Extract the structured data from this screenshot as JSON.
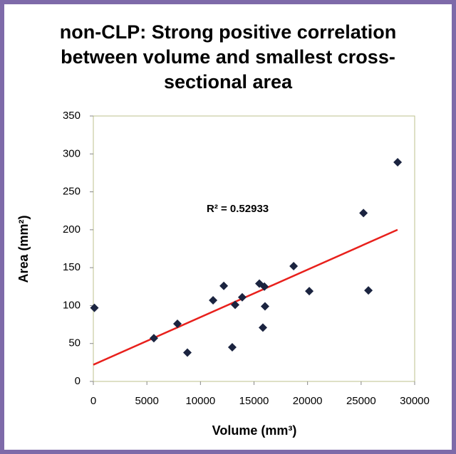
{
  "chart_data": {
    "type": "scatter",
    "title": "non-CLP: Strong positive correlation between volume and smallest cross-sectional area",
    "x_label": "Volume (mm³)",
    "y_label": "Area (mm²)",
    "x": [
      100,
      5650,
      7850,
      8780,
      11180,
      12180,
      12970,
      13240,
      13900,
      15500,
      15830,
      15970,
      16030,
      18700,
      20160,
      25220,
      25680,
      28410
    ],
    "values": [
      97,
      57,
      76,
      38,
      107,
      126,
      45,
      101,
      111,
      129,
      71,
      125,
      99,
      152,
      119,
      222,
      120,
      289
    ],
    "color": "#1b2440",
    "trendline": {
      "x": [
        0,
        28400
      ],
      "values": [
        22,
        200
      ],
      "color": "#e8201c"
    },
    "annotation": "R² = 0.52933",
    "xlim": [
      0,
      30000
    ],
    "xticks": [
      0,
      5000,
      10000,
      15000,
      20000,
      25000,
      30000
    ],
    "ylim": [
      0,
      350
    ],
    "yticks": [
      0,
      50,
      100,
      150,
      200,
      250,
      300,
      350
    ],
    "grid": false
  }
}
